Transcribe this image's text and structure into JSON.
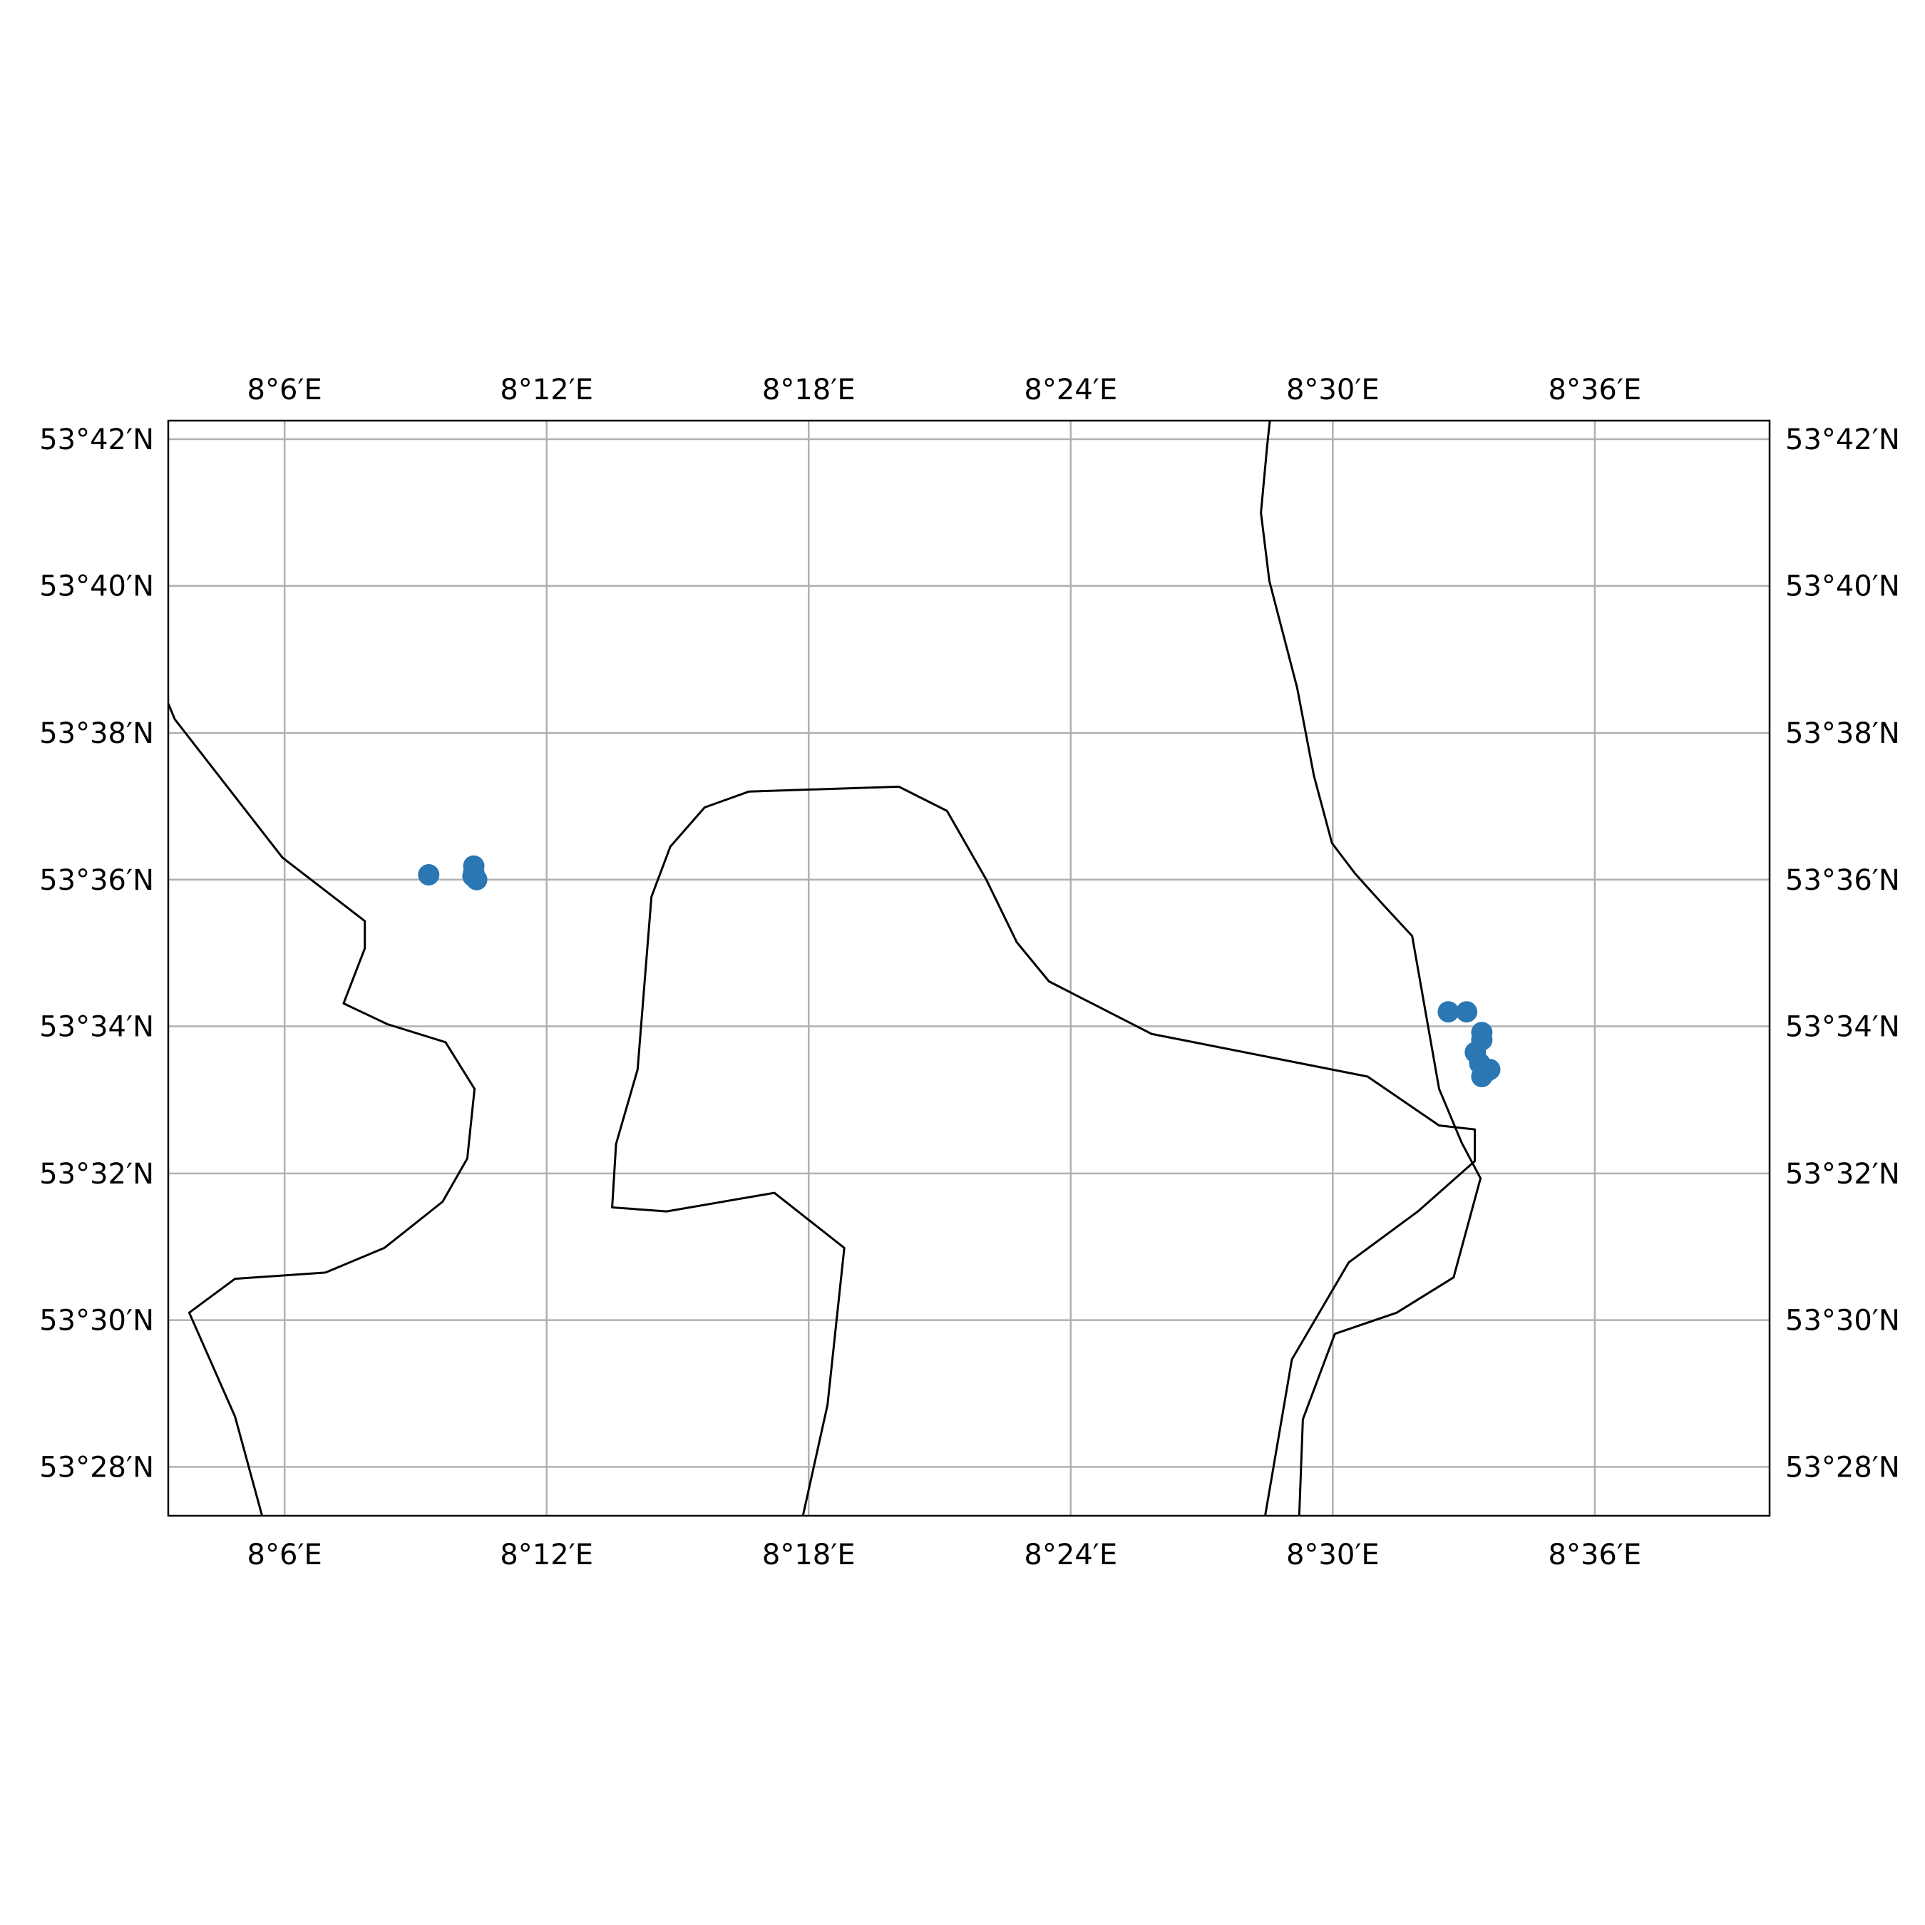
{
  "map": {
    "extent": {
      "lon": [
        8.0556,
        8.6667
      ],
      "lat": [
        53.4556,
        53.7042
      ]
    },
    "grid": true,
    "lon_ticks": [
      {
        "value": 8.1,
        "label": "8°6′E"
      },
      {
        "value": 8.2,
        "label": "8°12′E"
      },
      {
        "value": 8.3,
        "label": "8°18′E"
      },
      {
        "value": 8.4,
        "label": "8°24′E"
      },
      {
        "value": 8.5,
        "label": "8°30′E"
      },
      {
        "value": 8.6,
        "label": "8°36′E"
      }
    ],
    "lat_ticks": [
      {
        "value": 53.7,
        "label": "53°42′N"
      },
      {
        "value": 53.6667,
        "label": "53°40′N"
      },
      {
        "value": 53.6333,
        "label": "53°38′N"
      },
      {
        "value": 53.6,
        "label": "53°36′N"
      },
      {
        "value": 53.5667,
        "label": "53°34′N"
      },
      {
        "value": 53.5333,
        "label": "53°32′N"
      },
      {
        "value": 53.5,
        "label": "53°30′N"
      },
      {
        "value": 53.4667,
        "label": "53°28′N"
      }
    ],
    "colors": {
      "points": "#2a77b4",
      "coastline": "#000000",
      "grid": "#b0b0b0"
    },
    "coastlines": [
      [
        [
          8.0556,
          53.64
        ],
        [
          8.0581,
          53.6364
        ],
        [
          8.0992,
          53.605
        ],
        [
          8.1306,
          53.5906
        ],
        [
          8.1306,
          53.5844
        ],
        [
          8.1225,
          53.5719
        ],
        [
          8.1392,
          53.5672
        ],
        [
          8.1614,
          53.5631
        ],
        [
          8.1725,
          53.5525
        ],
        [
          8.1697,
          53.5367
        ],
        [
          8.1603,
          53.5269
        ],
        [
          8.1381,
          53.5164
        ],
        [
          8.1156,
          53.5108
        ],
        [
          8.0811,
          53.5094
        ],
        [
          8.0636,
          53.5017
        ],
        [
          8.0811,
          53.4781
        ],
        [
          8.0914,
          53.4556
        ]
      ],
      [
        [
          8.2978,
          53.4556
        ],
        [
          8.3072,
          53.4808
        ],
        [
          8.3136,
          53.5164
        ],
        [
          8.2869,
          53.5289
        ],
        [
          8.2458,
          53.5247
        ],
        [
          8.225,
          53.5256
        ],
        [
          8.2265,
          53.54
        ],
        [
          8.2347,
          53.5569
        ],
        [
          8.24,
          53.5961
        ],
        [
          8.2472,
          53.6075
        ],
        [
          8.2603,
          53.6164
        ],
        [
          8.2772,
          53.62
        ],
        [
          8.3344,
          53.6211
        ],
        [
          8.3528,
          53.6156
        ],
        [
          8.3678,
          53.6
        ],
        [
          8.3794,
          53.5858
        ],
        [
          8.3917,
          53.5769
        ],
        [
          8.4308,
          53.565
        ],
        [
          8.5133,
          53.5553
        ],
        [
          8.5406,
          53.5442
        ],
        [
          8.5542,
          53.5433
        ],
        [
          8.5542,
          53.5361
        ],
        [
          8.5325,
          53.5247
        ],
        [
          8.5061,
          53.5131
        ],
        [
          8.4844,
          53.4911
        ],
        [
          8.4742,
          53.4556
        ]
      ],
      [
        [
          8.4872,
          53.4556
        ],
        [
          8.4886,
          53.4775
        ],
        [
          8.5008,
          53.4969
        ],
        [
          8.5244,
          53.5017
        ],
        [
          8.5461,
          53.5097
        ],
        [
          8.5564,
          53.5322
        ],
        [
          8.5492,
          53.5403
        ],
        [
          8.5406,
          53.5525
        ],
        [
          8.5303,
          53.5872
        ],
        [
          8.5194,
          53.5942
        ],
        [
          8.5085,
          53.6014
        ],
        [
          8.4997,
          53.6083
        ],
        [
          8.4928,
          53.6236
        ],
        [
          8.4864,
          53.6436
        ],
        [
          8.4758,
          53.6678
        ],
        [
          8.4726,
          53.6833
        ],
        [
          8.475,
          53.6986
        ],
        [
          8.476,
          53.7042
        ]
      ]
    ],
    "points": [
      [
        8.155,
        53.6011
      ],
      [
        8.1722,
        53.6031
      ],
      [
        8.1719,
        53.6008
      ],
      [
        8.1733,
        53.6
      ],
      [
        8.1722,
        53.6017
      ],
      [
        8.5441,
        53.57
      ],
      [
        8.5511,
        53.57
      ],
      [
        8.5569,
        53.5653
      ],
      [
        8.5569,
        53.5636
      ],
      [
        8.5544,
        53.5608
      ],
      [
        8.5561,
        53.5583
      ],
      [
        8.5586,
        53.5564
      ],
      [
        8.5569,
        53.5553
      ],
      [
        8.5599,
        53.5569
      ]
    ]
  }
}
